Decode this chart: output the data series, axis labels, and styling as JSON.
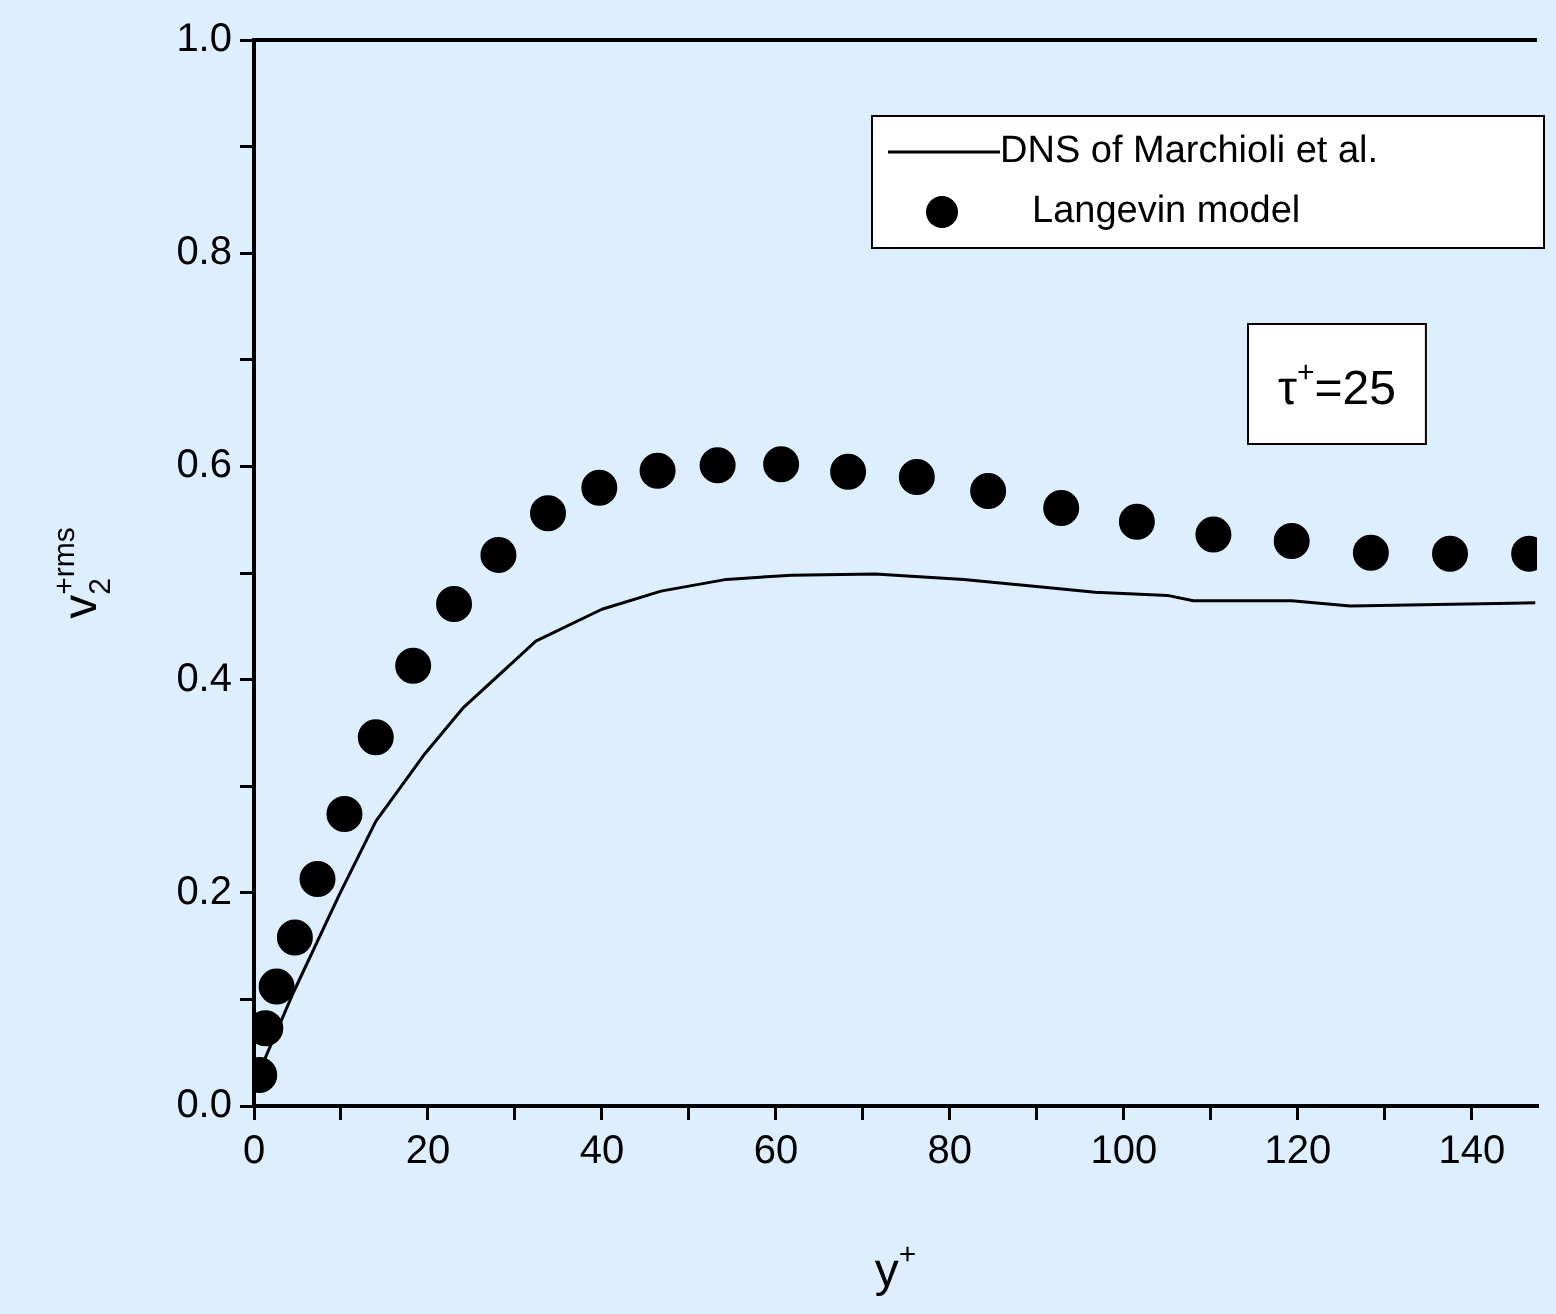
{
  "chart_data": {
    "type": "line",
    "xlabel": "y$^{+}$",
    "ylabel": "v$_{2}$$^{+rms}$",
    "xlim": [
      0,
      147.5
    ],
    "ylim": [
      0,
      1.0
    ],
    "xticks": [
      0,
      {
        "value": 10,
        "label": null
      },
      20,
      {
        "value": 30,
        "label": null
      },
      40,
      {
        "value": 50,
        "label": null
      },
      60,
      {
        "value": 70,
        "label": null
      },
      80,
      {
        "value": 90,
        "label": null
      },
      100,
      {
        "value": 110,
        "label": null
      },
      120,
      {
        "value": 130,
        "label": null
      },
      140
    ],
    "yticks": [
      {
        "value": 0,
        "label": "0.0"
      },
      {
        "value": 0.1,
        "label": null
      },
      0.2,
      {
        "value": 0.3,
        "label": null
      },
      0.4,
      {
        "value": 0.5,
        "label": null
      },
      0.6,
      {
        "value": 0.7,
        "label": null
      },
      0.8,
      {
        "value": 0.9,
        "label": null
      },
      {
        "value": 1.0,
        "label": "1.0"
      }
    ],
    "grid": false,
    "legend": "top right",
    "annotations": [
      "τ$^{+}$=25"
    ],
    "series": [
      {
        "name": "DNS of Marchioli et al.",
        "color": "#000000",
        "marker": "none",
        "line_style": "solid",
        "x": [
          0.5,
          4.5,
          9.8,
          14,
          19.6,
          24.1,
          32.4,
          40,
          46.8,
          54.3,
          61.8,
          71.4,
          81.6,
          96.7,
          105,
          108,
          119.3,
          126,
          132.7,
          147.3
        ],
        "values": [
          0.03,
          0.106,
          0.198,
          0.267,
          0.33,
          0.374,
          0.436,
          0.466,
          0.483,
          0.494,
          0.498,
          0.499,
          0.494,
          0.482,
          0.479,
          0.474,
          0.474,
          0.469,
          0.47,
          0.472
        ]
      },
      {
        "name": "Langevin model",
        "type": "scatter",
        "color": "#000000",
        "marker": "circle",
        "x": [
          0.6,
          1.3,
          2.6,
          4.7,
          7.3,
          10.4,
          14.0,
          18.3,
          23.0,
          28.1,
          33.8,
          39.7,
          46.4,
          53.3,
          60.6,
          68.3,
          76.2,
          84.4,
          92.8,
          101.5,
          110.3,
          119.3,
          128.4,
          137.5,
          146.6
        ],
        "values": [
          0.029,
          0.073,
          0.112,
          0.158,
          0.213,
          0.274,
          0.346,
          0.413,
          0.471,
          0.517,
          0.556,
          0.58,
          0.596,
          0.601,
          0.602,
          0.595,
          0.59,
          0.577,
          0.561,
          0.548,
          0.536,
          0.53,
          0.519,
          0.518,
          0.518
        ]
      }
    ]
  }
}
